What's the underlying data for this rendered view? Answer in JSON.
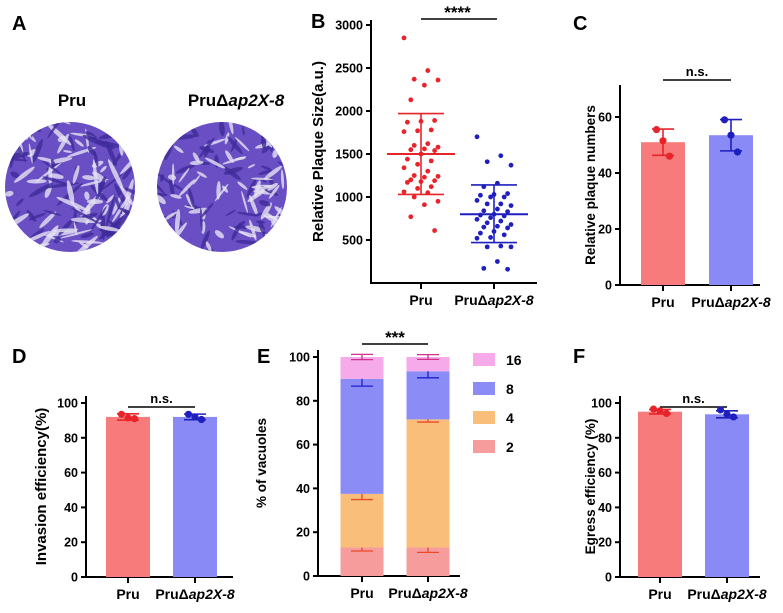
{
  "panel_labels": {
    "A": "A",
    "B": "B",
    "C": "C",
    "D": "D",
    "E": "E",
    "F": "F"
  },
  "categories": [
    "Pru",
    "PruΔap2X-8"
  ],
  "category_parts": {
    "prefix": "PruΔ",
    "italic": "ap2X-8"
  },
  "colors": {
    "red_point": "#e8232a",
    "blue_point": "#1f1fbf",
    "red_bar": "#f77b7b",
    "blue_bar": "#8a8af6",
    "seg_2": "#f79c9c",
    "seg_4": "#f9be7a",
    "seg_8": "#8c8cf7",
    "seg_16": "#f6aae9",
    "err_red": "#e8232a",
    "err_blue": "#1f1fbf",
    "plaque": "#6a4fc4"
  },
  "panel_a": {
    "labels": [
      "Pru",
      "PruΔap2X-8"
    ]
  },
  "chart_data": [
    {
      "id": "B",
      "type": "scatter",
      "ylabel": "Relative Plaque Size(a.u.)",
      "ylim": [
        0,
        3000
      ],
      "yticks": [
        500,
        1000,
        1500,
        2000,
        2500,
        3000
      ],
      "significance": "****",
      "series": [
        {
          "category": "Pru",
          "mean": 1500,
          "sd_low": 1030,
          "sd_high": 1970,
          "values": [
            2850,
            2470,
            2370,
            2360,
            2300,
            2130,
            1890,
            1880,
            1870,
            1780,
            1770,
            1760,
            1620,
            1600,
            1580,
            1560,
            1550,
            1540,
            1500,
            1440,
            1420,
            1380,
            1340,
            1300,
            1250,
            1240,
            1230,
            1200,
            1190,
            1180,
            1170,
            1120,
            1100,
            1060,
            1050,
            1000,
            950,
            910,
            770,
            610
          ]
        },
        {
          "category": "PruΔap2X-8",
          "mean": 800,
          "sd_low": 470,
          "sd_high": 1140,
          "values": [
            1700,
            1480,
            1410,
            1370,
            1160,
            1120,
            1040,
            1030,
            1020,
            1000,
            1000,
            960,
            920,
            920,
            900,
            860,
            840,
            830,
            800,
            790,
            780,
            760,
            740,
            720,
            700,
            680,
            660,
            650,
            640,
            600,
            580,
            560,
            530,
            520,
            430,
            420,
            420,
            250,
            170,
            160
          ]
        }
      ]
    },
    {
      "id": "C",
      "type": "bar",
      "ylabel": "Relative plaque numbers",
      "ylim": [
        0,
        70
      ],
      "yticks": [
        0,
        20,
        40,
        60
      ],
      "significance": "n.s.",
      "series": [
        {
          "category": "Pru",
          "mean": 51,
          "sd": 4.7,
          "points": [
            55.5,
            51.5,
            46
          ]
        },
        {
          "category": "PruΔap2X-8",
          "mean": 53.5,
          "sd": 5.6,
          "points": [
            59,
            53.5,
            47.5
          ]
        }
      ]
    },
    {
      "id": "D",
      "type": "bar",
      "ylabel": "Invasion efficiency(%)",
      "ylim": [
        0,
        100
      ],
      "yticks": [
        0,
        20,
        40,
        60,
        80,
        100
      ],
      "significance": "n.s.",
      "series": [
        {
          "category": "Pru",
          "mean": 92,
          "sd": 1.8,
          "points": [
            93.5,
            91.5,
            91
          ]
        },
        {
          "category": "PruΔap2X-8",
          "mean": 92,
          "sd": 1.6,
          "points": [
            93.5,
            92,
            90.5
          ]
        }
      ]
    },
    {
      "id": "E",
      "type": "stacked_bar",
      "ylabel": "% of vacuoles",
      "ylim": [
        0,
        100
      ],
      "yticks": [
        0,
        20,
        40,
        60,
        80,
        100
      ],
      "significance": "***",
      "legend": [
        "16",
        "8",
        "4",
        "2"
      ],
      "legend_position": "right",
      "series": [
        {
          "name": "2",
          "values": [
            13,
            13
          ],
          "sd": [
            1.6,
            2.2
          ]
        },
        {
          "name": "4",
          "values": [
            24.5,
            58.5
          ],
          "sd": [
            2.6,
            1.2
          ]
        },
        {
          "name": "8",
          "values": [
            52.5,
            22
          ],
          "sd": [
            3.3,
            3
          ]
        },
        {
          "name": "16",
          "values": [
            10,
            6.5
          ],
          "sd": [
            1.2,
            1.1
          ]
        }
      ]
    },
    {
      "id": "F",
      "type": "bar",
      "ylabel": "Egress efficiency (%)",
      "ylim": [
        0,
        100
      ],
      "yticks": [
        0,
        20,
        40,
        60,
        80,
        100
      ],
      "significance": "n.s.",
      "series": [
        {
          "category": "Pru",
          "mean": 95,
          "sd": 1.3,
          "points": [
            96.5,
            95.5,
            94
          ]
        },
        {
          "category": "PruΔap2X-8",
          "mean": 93.5,
          "sd": 2,
          "points": [
            96,
            93.5,
            92
          ]
        }
      ]
    }
  ]
}
